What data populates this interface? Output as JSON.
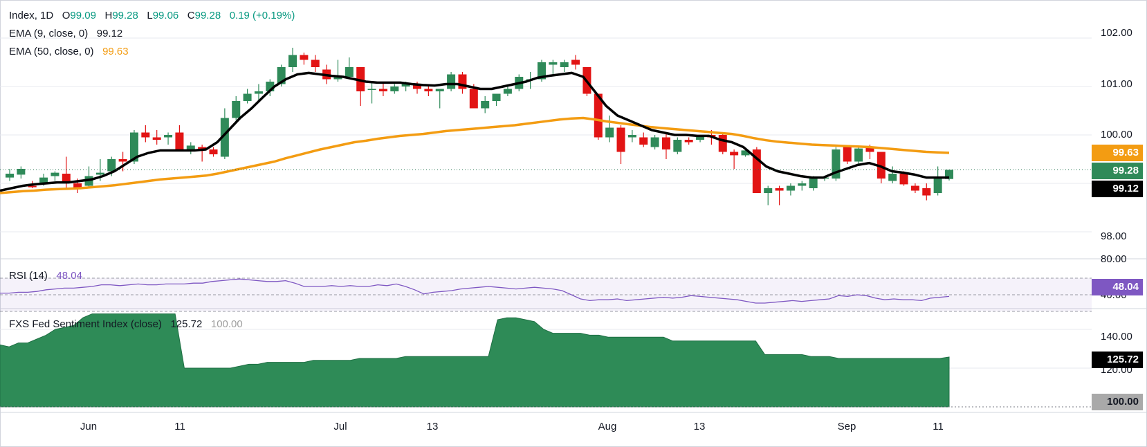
{
  "legend": {
    "symbol": "Index, 1D",
    "o_label": "O",
    "o_val": "99.09",
    "h_label": "H",
    "h_val": "99.28",
    "l_label": "L",
    "l_val": "99.06",
    "c_label": "C",
    "c_val": "99.28",
    "change": "0.19 (+0.19%)",
    "ema9_label": "EMA (9, close, 0)",
    "ema9_val": "99.12",
    "ema50_label": "EMA (50, close, 0)",
    "ema50_val": "99.63",
    "rsi_label": "RSI (14)",
    "rsi_val": "48.04",
    "fxs_label": "FXS Fed Sentiment Index (close)",
    "fxs_val": "125.72",
    "fxs_base": "100.00"
  },
  "badges": {
    "ema50": "99.63",
    "close": "99.28",
    "ema9": "99.12",
    "rsi": "48.04",
    "fxs": "125.72",
    "fxs_base": "100.00"
  },
  "colors": {
    "up": "#2f8a59",
    "down": "#e21414",
    "ema9": "#000000",
    "ema50": "#f39c12",
    "rsi": "#7e57c2",
    "fxs": "#2e8b57",
    "grid": "#e7e9ef",
    "close_line": "#1f6f4a"
  },
  "axes": {
    "price_ticks": [
      "102.00",
      "101.00",
      "100.00",
      "98.00"
    ],
    "rsi_ticks": [
      "80.00",
      "40.00"
    ],
    "fxs_ticks": [
      "140.00",
      "120.00"
    ],
    "x_ticks": [
      "Jun",
      "11",
      "Jul",
      "13",
      "Aug",
      "13",
      "Sep",
      "11"
    ]
  },
  "chart_data": [
    {
      "type": "candlestick",
      "title": "Index, 1D",
      "ylim": [
        97.5,
        102.5
      ],
      "candles": [
        {
          "o": 99.12,
          "h": 99.3,
          "l": 99.05,
          "c": 99.2
        },
        {
          "o": 99.18,
          "h": 99.35,
          "l": 99.1,
          "c": 99.3
        },
        {
          "o": 98.95,
          "h": 99.05,
          "l": 98.9,
          "c": 98.92
        },
        {
          "o": 99.0,
          "h": 99.2,
          "l": 98.95,
          "c": 99.12
        },
        {
          "o": 99.15,
          "h": 99.25,
          "l": 99.05,
          "c": 99.22
        },
        {
          "o": 99.2,
          "h": 99.55,
          "l": 98.9,
          "c": 99.0
        },
        {
          "o": 99.0,
          "h": 99.1,
          "l": 98.8,
          "c": 98.88
        },
        {
          "o": 98.95,
          "h": 99.35,
          "l": 98.9,
          "c": 99.15
        },
        {
          "o": 99.18,
          "h": 99.5,
          "l": 99.05,
          "c": 99.22
        },
        {
          "o": 99.25,
          "h": 99.55,
          "l": 99.15,
          "c": 99.5
        },
        {
          "o": 99.5,
          "h": 99.65,
          "l": 99.25,
          "c": 99.45
        },
        {
          "o": 99.45,
          "h": 100.1,
          "l": 99.4,
          "c": 100.05
        },
        {
          "o": 100.05,
          "h": 100.2,
          "l": 99.85,
          "c": 99.95
        },
        {
          "o": 99.95,
          "h": 100.1,
          "l": 99.8,
          "c": 99.9
        },
        {
          "o": 99.95,
          "h": 100.05,
          "l": 99.8,
          "c": 100.0
        },
        {
          "o": 100.05,
          "h": 100.2,
          "l": 99.7,
          "c": 99.7
        },
        {
          "o": 99.7,
          "h": 99.85,
          "l": 99.6,
          "c": 99.78
        },
        {
          "o": 99.75,
          "h": 99.8,
          "l": 99.45,
          "c": 99.7
        },
        {
          "o": 99.7,
          "h": 99.75,
          "l": 99.55,
          "c": 99.6
        },
        {
          "o": 99.55,
          "h": 100.55,
          "l": 99.5,
          "c": 100.35
        },
        {
          "o": 100.35,
          "h": 100.8,
          "l": 100.3,
          "c": 100.7
        },
        {
          "o": 100.7,
          "h": 100.95,
          "l": 100.65,
          "c": 100.85
        },
        {
          "o": 100.85,
          "h": 101.05,
          "l": 100.7,
          "c": 100.9
        },
        {
          "o": 100.9,
          "h": 101.15,
          "l": 100.8,
          "c": 101.1
        },
        {
          "o": 101.05,
          "h": 101.45,
          "l": 101.0,
          "c": 101.4
        },
        {
          "o": 101.4,
          "h": 101.8,
          "l": 101.3,
          "c": 101.65
        },
        {
          "o": 101.65,
          "h": 101.7,
          "l": 101.45,
          "c": 101.55
        },
        {
          "o": 101.55,
          "h": 101.65,
          "l": 101.3,
          "c": 101.4
        },
        {
          "o": 101.35,
          "h": 101.45,
          "l": 101.05,
          "c": 101.15
        },
        {
          "o": 101.15,
          "h": 101.55,
          "l": 101.1,
          "c": 101.2
        },
        {
          "o": 101.2,
          "h": 101.6,
          "l": 101.15,
          "c": 101.4
        },
        {
          "o": 101.4,
          "h": 101.4,
          "l": 100.6,
          "c": 100.9
        },
        {
          "o": 100.95,
          "h": 101.1,
          "l": 100.65,
          "c": 100.95
        },
        {
          "o": 100.95,
          "h": 101.1,
          "l": 100.8,
          "c": 100.9
        },
        {
          "o": 100.9,
          "h": 101.05,
          "l": 100.85,
          "c": 101.0
        },
        {
          "o": 101.0,
          "h": 101.1,
          "l": 100.9,
          "c": 101.05
        },
        {
          "o": 101.05,
          "h": 101.1,
          "l": 100.85,
          "c": 100.95
        },
        {
          "o": 100.95,
          "h": 101.05,
          "l": 100.8,
          "c": 100.9
        },
        {
          "o": 100.9,
          "h": 100.95,
          "l": 100.55,
          "c": 100.95
        },
        {
          "o": 100.95,
          "h": 101.3,
          "l": 100.9,
          "c": 101.25
        },
        {
          "o": 101.25,
          "h": 101.3,
          "l": 100.85,
          "c": 100.95
        },
        {
          "o": 100.95,
          "h": 101.05,
          "l": 100.55,
          "c": 100.55
        },
        {
          "o": 100.55,
          "h": 100.8,
          "l": 100.45,
          "c": 100.7
        },
        {
          "o": 100.7,
          "h": 100.85,
          "l": 100.6,
          "c": 100.85
        },
        {
          "o": 100.85,
          "h": 101.0,
          "l": 100.8,
          "c": 100.95
        },
        {
          "o": 100.95,
          "h": 101.25,
          "l": 100.9,
          "c": 101.2
        },
        {
          "o": 101.15,
          "h": 101.3,
          "l": 100.95,
          "c": 101.15
        },
        {
          "o": 101.15,
          "h": 101.55,
          "l": 101.1,
          "c": 101.5
        },
        {
          "o": 101.45,
          "h": 101.55,
          "l": 101.25,
          "c": 101.5
        },
        {
          "o": 101.4,
          "h": 101.55,
          "l": 101.3,
          "c": 101.5
        },
        {
          "o": 101.55,
          "h": 101.65,
          "l": 101.35,
          "c": 101.45
        },
        {
          "o": 101.4,
          "h": 101.4,
          "l": 100.8,
          "c": 100.85
        },
        {
          "o": 100.85,
          "h": 100.85,
          "l": 99.9,
          "c": 99.95
        },
        {
          "o": 99.95,
          "h": 100.4,
          "l": 99.85,
          "c": 100.15
        },
        {
          "o": 100.15,
          "h": 100.2,
          "l": 99.4,
          "c": 99.65
        },
        {
          "o": 99.95,
          "h": 100.1,
          "l": 99.85,
          "c": 100.0
        },
        {
          "o": 99.95,
          "h": 100.05,
          "l": 99.75,
          "c": 99.8
        },
        {
          "o": 99.75,
          "h": 100.0,
          "l": 99.7,
          "c": 99.95
        },
        {
          "o": 99.95,
          "h": 100.05,
          "l": 99.5,
          "c": 99.7
        },
        {
          "o": 99.65,
          "h": 99.95,
          "l": 99.6,
          "c": 99.9
        },
        {
          "o": 99.9,
          "h": 99.95,
          "l": 99.8,
          "c": 99.85
        },
        {
          "o": 99.9,
          "h": 100.0,
          "l": 99.85,
          "c": 100.0
        },
        {
          "o": 100.0,
          "h": 100.1,
          "l": 99.8,
          "c": 99.95
        },
        {
          "o": 100.0,
          "h": 100.05,
          "l": 99.6,
          "c": 99.65
        },
        {
          "o": 99.65,
          "h": 99.7,
          "l": 99.3,
          "c": 99.58
        },
        {
          "o": 99.58,
          "h": 99.7,
          "l": 99.55,
          "c": 99.68
        },
        {
          "o": 99.7,
          "h": 99.75,
          "l": 98.8,
          "c": 98.8
        },
        {
          "o": 98.8,
          "h": 98.95,
          "l": 98.55,
          "c": 98.9
        },
        {
          "o": 98.9,
          "h": 98.95,
          "l": 98.55,
          "c": 98.85
        },
        {
          "o": 98.85,
          "h": 99.0,
          "l": 98.75,
          "c": 98.95
        },
        {
          "o": 98.95,
          "h": 99.05,
          "l": 98.85,
          "c": 99.0
        },
        {
          "o": 98.9,
          "h": 99.15,
          "l": 98.85,
          "c": 99.1
        },
        {
          "o": 99.1,
          "h": 99.15,
          "l": 99.05,
          "c": 99.12
        },
        {
          "o": 99.1,
          "h": 99.75,
          "l": 99.05,
          "c": 99.7
        },
        {
          "o": 99.75,
          "h": 99.75,
          "l": 99.4,
          "c": 99.45
        },
        {
          "o": 99.45,
          "h": 99.75,
          "l": 99.4,
          "c": 99.72
        },
        {
          "o": 99.75,
          "h": 99.8,
          "l": 99.5,
          "c": 99.65
        },
        {
          "o": 99.65,
          "h": 99.65,
          "l": 99.0,
          "c": 99.1
        },
        {
          "o": 99.05,
          "h": 99.35,
          "l": 99.0,
          "c": 99.2
        },
        {
          "o": 99.2,
          "h": 99.25,
          "l": 98.95,
          "c": 98.98
        },
        {
          "o": 98.95,
          "h": 99.0,
          "l": 98.8,
          "c": 98.85
        },
        {
          "o": 98.9,
          "h": 99.0,
          "l": 98.65,
          "c": 98.75
        },
        {
          "o": 98.8,
          "h": 99.35,
          "l": 98.75,
          "c": 99.1
        },
        {
          "o": 99.09,
          "h": 99.28,
          "l": 99.06,
          "c": 99.28
        }
      ],
      "ema9": [
        98.85,
        98.9,
        98.95,
        98.98,
        99.0,
        99.02,
        99.02,
        99.05,
        99.08,
        99.15,
        99.25,
        99.4,
        99.55,
        99.63,
        99.68,
        99.68,
        99.68,
        99.68,
        99.7,
        99.85,
        100.1,
        100.35,
        100.55,
        100.78,
        101.0,
        101.15,
        101.25,
        101.28,
        101.25,
        101.22,
        101.2,
        101.15,
        101.1,
        101.08,
        101.08,
        101.08,
        101.05,
        101.03,
        101.02,
        101.05,
        101.05,
        101.0,
        100.95,
        100.95,
        101.0,
        101.05,
        101.1,
        101.18,
        101.22,
        101.25,
        101.28,
        101.2,
        100.9,
        100.6,
        100.4,
        100.3,
        100.2,
        100.1,
        100.05,
        100.0,
        100.0,
        99.98,
        99.98,
        99.9,
        99.85,
        99.75,
        99.55,
        99.35,
        99.25,
        99.2,
        99.15,
        99.12,
        99.12,
        99.22,
        99.3,
        99.38,
        99.42,
        99.35,
        99.25,
        99.22,
        99.18,
        99.12,
        99.12,
        99.12
      ],
      "ema50": [
        98.8,
        98.82,
        98.84,
        98.85,
        98.87,
        98.88,
        98.89,
        98.9,
        98.92,
        98.94,
        98.96,
        98.99,
        99.02,
        99.05,
        99.08,
        99.1,
        99.12,
        99.14,
        99.16,
        99.2,
        99.25,
        99.3,
        99.35,
        99.4,
        99.45,
        99.52,
        99.58,
        99.64,
        99.7,
        99.75,
        99.8,
        99.85,
        99.88,
        99.92,
        99.95,
        99.98,
        100.0,
        100.02,
        100.05,
        100.08,
        100.1,
        100.12,
        100.14,
        100.16,
        100.18,
        100.2,
        100.23,
        100.26,
        100.29,
        100.32,
        100.34,
        100.35,
        100.32,
        100.28,
        100.25,
        100.22,
        100.19,
        100.16,
        100.14,
        100.12,
        100.1,
        100.08,
        100.06,
        100.04,
        100.02,
        99.98,
        99.93,
        99.89,
        99.86,
        99.84,
        99.82,
        99.8,
        99.79,
        99.78,
        99.77,
        99.76,
        99.75,
        99.73,
        99.71,
        99.69,
        99.67,
        99.65,
        99.64,
        99.63
      ]
    },
    {
      "type": "line",
      "title": "RSI (14)",
      "ylim": [
        35,
        90
      ],
      "values": [
        52,
        52,
        53,
        53,
        54,
        56,
        57,
        58,
        58,
        59,
        60,
        62,
        62,
        61,
        62,
        63,
        62,
        62,
        63,
        63,
        63,
        64,
        64,
        66,
        67,
        68,
        69,
        68,
        67,
        66,
        66,
        67,
        64,
        60,
        60,
        60,
        61,
        60,
        61,
        60,
        60,
        62,
        61,
        63,
        60,
        56,
        51,
        53,
        54,
        55,
        57,
        58,
        59,
        60,
        59,
        58,
        57,
        58,
        59,
        58,
        57,
        55,
        50,
        45,
        43,
        44,
        44,
        45,
        43,
        44,
        45,
        46,
        47,
        46,
        47,
        49,
        48,
        47,
        46,
        45,
        44,
        42,
        40,
        40,
        41,
        42,
        43,
        42,
        43,
        44,
        45,
        49,
        48,
        50,
        49,
        46,
        44,
        45,
        44,
        44,
        43,
        46,
        47,
        48
      ]
    },
    {
      "type": "area",
      "title": "FXS Fed Sentiment Index (close)",
      "ylim": [
        100,
        150
      ],
      "values": [
        132,
        131,
        133,
        133,
        135,
        137,
        140,
        141,
        142,
        146,
        148,
        148,
        148,
        148,
        148,
        148,
        148,
        148,
        148,
        148,
        120,
        120,
        120,
        120,
        120,
        120,
        121,
        122,
        122,
        123,
        123,
        123,
        123,
        123,
        124,
        124,
        124,
        124,
        124,
        125,
        125,
        125,
        125,
        125,
        126,
        126,
        126,
        126,
        126,
        126,
        126,
        126,
        126,
        126,
        145,
        146,
        146,
        145,
        144,
        140,
        138,
        138,
        138,
        138,
        137,
        137,
        136,
        136,
        136,
        136,
        136,
        136,
        136,
        134,
        134,
        134,
        134,
        134,
        134,
        134,
        134,
        134,
        134,
        127,
        127,
        127,
        127,
        127,
        126,
        126,
        126,
        125,
        125,
        125,
        125,
        125,
        125,
        125,
        125,
        125,
        125,
        125,
        125,
        125.72
      ]
    }
  ]
}
